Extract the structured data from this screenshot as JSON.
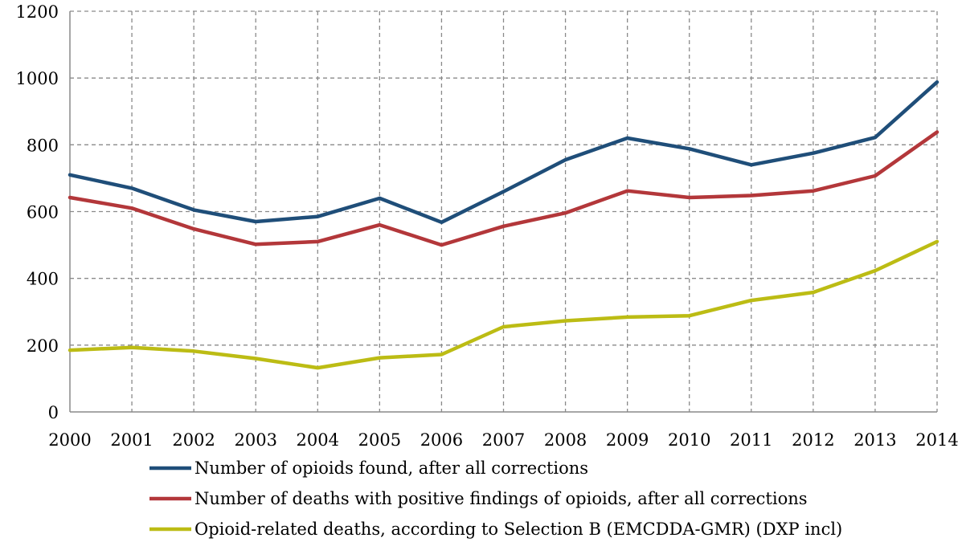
{
  "chart_data": {
    "type": "line",
    "title": "",
    "xlabel": "",
    "ylabel": "",
    "x": [
      "2000",
      "2001",
      "2002",
      "2003",
      "2004",
      "2005",
      "2006",
      "2007",
      "2008",
      "2009",
      "2010",
      "2011",
      "2012",
      "2013",
      "2014"
    ],
    "ylim": [
      0,
      1200
    ],
    "yticks": [
      0,
      200,
      400,
      600,
      800,
      1000,
      1200
    ],
    "ytick_labels": [
      "0",
      "200",
      "400",
      "600",
      "800",
      "1000",
      "1200"
    ],
    "grid": true,
    "legend_position": "bottom",
    "series": [
      {
        "name": "Number of opioids found, after all corrections",
        "color": "#1f4e79",
        "values": [
          710,
          670,
          605,
          570,
          585,
          640,
          568,
          660,
          755,
          820,
          788,
          740,
          775,
          822,
          988
        ]
      },
      {
        "name": "Number of deaths with positive findings of opioids, after all corrections",
        "color": "#b3373a",
        "values": [
          642,
          610,
          548,
          502,
          510,
          560,
          500,
          556,
          596,
          662,
          642,
          648,
          662,
          707,
          838
        ]
      },
      {
        "name": "Opioid-related deaths, according to Selection B (EMCDDA-GMR) (DXP incl)",
        "color": "#bcbc14",
        "values": [
          185,
          193,
          182,
          160,
          132,
          162,
          172,
          255,
          273,
          284,
          288,
          334,
          358,
          423,
          510
        ]
      }
    ]
  }
}
